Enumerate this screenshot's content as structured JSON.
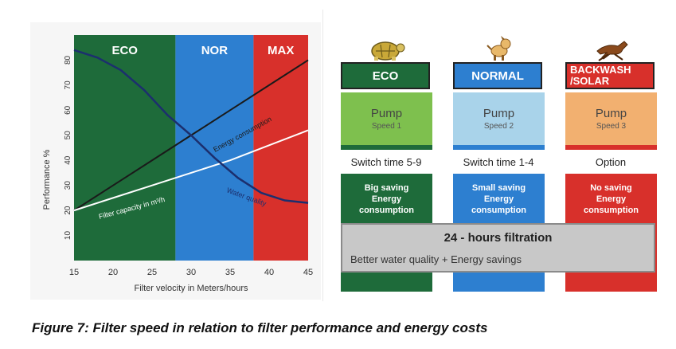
{
  "chart": {
    "zones": [
      {
        "label": "ECO",
        "color": "#1e6b3a"
      },
      {
        "label": "NOR",
        "color": "#2d7fd0"
      },
      {
        "label": "MAX",
        "color": "#d8302b"
      }
    ],
    "ylabel": "Performance %",
    "xlabel": "Filter velocity in Meters/hours",
    "x_ticks": [
      "15",
      "20",
      "25",
      "30",
      "35",
      "40",
      "45"
    ],
    "y_ticks": [
      "10",
      "20",
      "30",
      "40",
      "50",
      "60",
      "70",
      "80"
    ],
    "line_labels": {
      "energy": "Energy consumption",
      "capacity": "Filter capacity in m³/h",
      "quality": "Water quality"
    }
  },
  "chart_data": {
    "type": "line",
    "title": "",
    "xlabel": "Filter velocity in Meters/hours",
    "ylabel": "Performance %",
    "xlim": [
      15,
      45
    ],
    "ylim": [
      0,
      90
    ],
    "zones": [
      {
        "label": "ECO",
        "from": 15,
        "to": 28
      },
      {
        "label": "NOR",
        "from": 28,
        "to": 38
      },
      {
        "label": "MAX",
        "from": 38,
        "to": 45
      }
    ],
    "series": [
      {
        "name": "Energy consumption",
        "x": [
          15,
          20,
          25,
          30,
          35,
          40,
          45
        ],
        "y": [
          20,
          30,
          40,
          50,
          60,
          70,
          80
        ]
      },
      {
        "name": "Filter capacity in m³/h",
        "x": [
          15,
          20,
          25,
          30,
          35,
          40,
          45
        ],
        "y": [
          20,
          25,
          30,
          35,
          40,
          46,
          52
        ]
      },
      {
        "name": "Water quality",
        "x": [
          15,
          18,
          21,
          24,
          27,
          30,
          33,
          36,
          39,
          42,
          45
        ],
        "y": [
          84,
          81,
          76,
          68,
          58,
          50,
          41,
          33,
          27,
          24,
          23
        ]
      }
    ]
  },
  "modes": [
    {
      "label": "ECO",
      "label_color": "#1e6b3a",
      "pump_title": "Pump",
      "pump_speed": "Speed 1",
      "pump_color": "#7ec04e",
      "switch": "Switch time 5-9",
      "saving": "Big saving\nEnergy\nconsumption",
      "saving_color": "#1e6b3a",
      "column_color": "#1e6b3a",
      "animal": "turtle-icon"
    },
    {
      "label": "NORMAL",
      "label_color": "#2d7fd0",
      "pump_title": "Pump",
      "pump_speed": "Speed 2",
      "pump_color": "#a9d3ea",
      "switch": "Switch time 1-4",
      "saving": "Small saving\nEnergy\nconsumption",
      "saving_color": "#2d7fd0",
      "column_color": "#2d7fd0",
      "animal": "dog-icon"
    },
    {
      "label": "BACKWASH\n/SOLAR",
      "label_color": "#d8302b",
      "pump_title": "Pump",
      "pump_speed": "Speed 3",
      "pump_color": "#f2b070",
      "switch": "Option",
      "saving": "No saving\nEnergy\nconsumption",
      "saving_color": "#d8302b",
      "column_color": "#d8302b",
      "animal": "horse-icon"
    }
  ],
  "filtration": {
    "title": "24 - hours filtration",
    "subtitle": "Better water quality + Energy savings"
  },
  "caption": "Figure 7: Filter speed in relation to filter performance and energy costs"
}
